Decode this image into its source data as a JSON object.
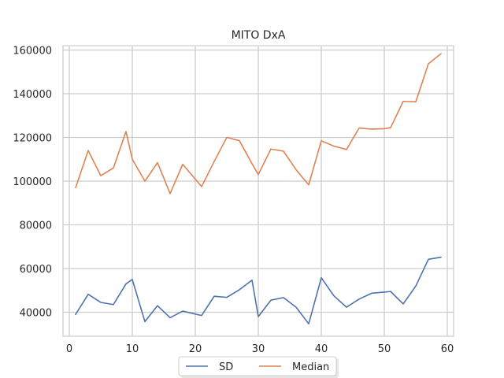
{
  "chart_data": {
    "type": "line",
    "title": "MITO DxA",
    "xlabel": "",
    "ylabel": "",
    "xlim": [
      -1,
      61
    ],
    "ylim": [
      29000,
      162000
    ],
    "xticks": [
      0,
      10,
      20,
      30,
      40,
      50,
      60
    ],
    "yticks": [
      40000,
      60000,
      80000,
      100000,
      120000,
      140000,
      160000
    ],
    "grid": true,
    "legend_position": "bottom-center",
    "x": [
      1,
      3,
      5,
      7,
      9,
      10,
      12,
      14,
      16,
      18,
      21,
      23,
      25,
      27,
      29,
      30,
      32,
      34,
      36,
      38,
      40,
      42,
      44,
      46,
      48,
      50,
      51,
      53,
      55,
      57,
      59
    ],
    "series": [
      {
        "name": "SD",
        "color": "#4c72b0",
        "values": [
          39000,
          48200,
          44500,
          43500,
          53000,
          55000,
          35700,
          43000,
          37500,
          40500,
          38500,
          47300,
          46800,
          50300,
          54700,
          38000,
          45500,
          46700,
          42300,
          34700,
          55800,
          47500,
          42300,
          46000,
          48700,
          49200,
          49500,
          43800,
          52000,
          64200,
          65200
        ]
      },
      {
        "name": "Median",
        "color": "#dd8452",
        "values": [
          97000,
          114000,
          102500,
          106000,
          122700,
          110000,
          100000,
          108500,
          94300,
          107700,
          97500,
          109000,
          120000,
          118500,
          108000,
          103000,
          114700,
          113700,
          105200,
          98300,
          118500,
          116000,
          114500,
          124300,
          123800,
          124000,
          124500,
          136500,
          136300,
          153700,
          158300
        ]
      }
    ]
  }
}
